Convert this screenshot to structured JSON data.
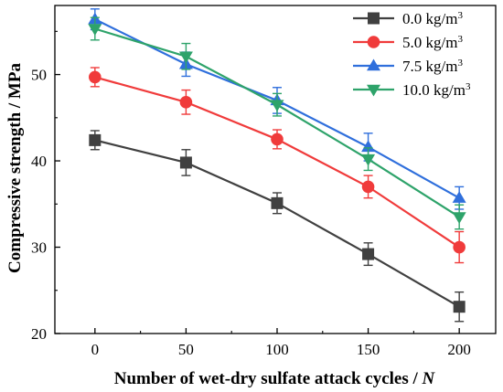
{
  "chart_data": {
    "type": "line",
    "xlabel_main": "Number of wet-dry sulfate attack cycles / ",
    "xlabel_var": "N",
    "ylabel": "Compressive strength / MPa",
    "x": [
      0,
      50,
      100,
      150,
      200
    ],
    "x_ticks": [
      "0",
      "50",
      "100",
      "150",
      "200"
    ],
    "y_ticks": [
      "20",
      "30",
      "40",
      "50"
    ],
    "xlim": [
      -22,
      220
    ],
    "ylim": [
      20,
      58
    ],
    "legend_position": "top-right",
    "series": [
      {
        "name": "0.0 kg/m",
        "sup": "3",
        "color": "#404040",
        "marker": "square",
        "values": [
          42.4,
          39.8,
          35.1,
          29.2,
          23.1
        ],
        "errors": [
          1.1,
          1.5,
          1.2,
          1.3,
          1.7
        ]
      },
      {
        "name": "5.0  kg/m",
        "sup": "3",
        "color": "#f03b3b",
        "marker": "circle",
        "values": [
          49.7,
          46.8,
          42.5,
          37.0,
          30.0
        ],
        "errors": [
          1.1,
          1.4,
          1.1,
          1.3,
          1.8
        ]
      },
      {
        "name": "7.5 kg/m",
        "sup": "3",
        "color": "#2f6fdc",
        "marker": "triangle-up",
        "values": [
          56.4,
          51.2,
          47.0,
          41.6,
          35.7
        ],
        "errors": [
          1.2,
          1.4,
          1.5,
          1.6,
          1.3
        ]
      },
      {
        "name": "10.0 kg/m",
        "sup": "3",
        "color": "#2ea36a",
        "marker": "triangle-down",
        "values": [
          55.3,
          52.1,
          46.5,
          40.2,
          33.5
        ],
        "errors": [
          1.3,
          1.5,
          1.3,
          1.3,
          1.4
        ]
      }
    ]
  }
}
